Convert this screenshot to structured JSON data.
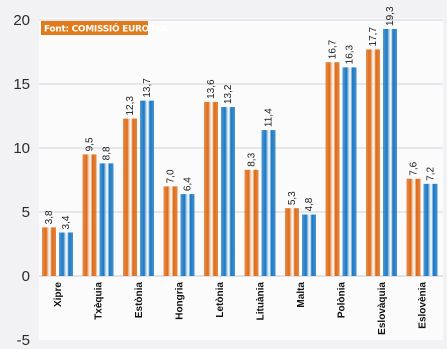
{
  "source_note": "Font: COMISSIÓ EUROPEA",
  "colors": {
    "plot_background": "#fbfbfc",
    "grid": "#cfd3dc",
    "source_box": "#e07a1a",
    "series_orange": "#de6b16",
    "series_blue": "#1a78c4"
  },
  "chart_data": {
    "type": "bar",
    "categories": [
      "Xipre",
      "Txèquia",
      "Estònia",
      "Hongria",
      "Letònia",
      "Lituània",
      "Malta",
      "Polònia",
      "Eslovàquia",
      "Eslovènia"
    ],
    "series": [
      {
        "color": "#de6b16",
        "values": [
          3.8,
          9.5,
          12.3,
          7.0,
          13.6,
          8.3,
          5.3,
          16.7,
          17.7,
          7.6
        ],
        "labels": [
          "3,8",
          "9,5",
          "12,3",
          "7,0",
          "13,6",
          "8,3",
          "5,3",
          "16,7",
          "17,7",
          "7,6"
        ]
      },
      {
        "color": "#1a78c4",
        "values": [
          3.4,
          8.8,
          13.7,
          6.4,
          13.2,
          11.4,
          4.8,
          16.3,
          19.3,
          7.2
        ],
        "labels": [
          "3,4",
          "8,8",
          "13,7",
          "6,4",
          "13,2",
          "11,4",
          "4,8",
          "16,3",
          "19,3",
          "7,2"
        ]
      }
    ],
    "y_ticks": [
      "20",
      "15",
      "10",
      "5",
      "0",
      "-5"
    ],
    "y_tick_values": [
      20,
      15,
      10,
      5,
      0,
      -5
    ],
    "ylim": [
      -5,
      20
    ],
    "grid": true,
    "legend": "none"
  }
}
